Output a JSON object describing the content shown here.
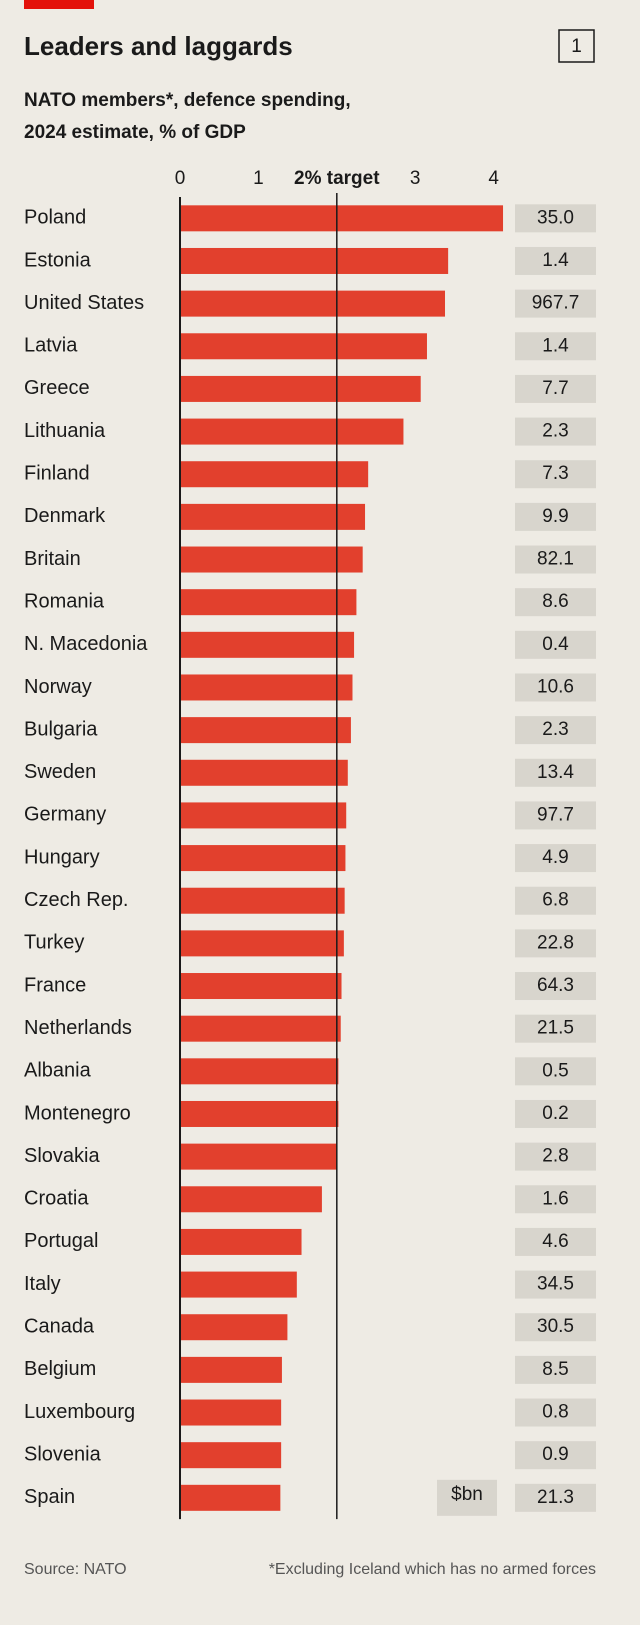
{
  "chart_data": {
    "type": "bar",
    "orientation": "horizontal",
    "title": "Leaders and laggards",
    "chart_number": "1",
    "subtitle": [
      "NATO members*, defence spending,",
      "2024 estimate, % of GDP"
    ],
    "categories": [
      "Poland",
      "Estonia",
      "United States",
      "Latvia",
      "Greece",
      "Lithuania",
      "Finland",
      "Denmark",
      "Britain",
      "Romania",
      "N. Macedonia",
      "Norway",
      "Bulgaria",
      "Sweden",
      "Germany",
      "Hungary",
      "Czech Rep.",
      "Turkey",
      "France",
      "Netherlands",
      "Albania",
      "Montenegro",
      "Slovakia",
      "Croatia",
      "Portugal",
      "Italy",
      "Canada",
      "Belgium",
      "Luxembourg",
      "Slovenia",
      "Spain"
    ],
    "values": [
      4.12,
      3.42,
      3.38,
      3.15,
      3.07,
      2.85,
      2.4,
      2.36,
      2.33,
      2.25,
      2.22,
      2.2,
      2.18,
      2.14,
      2.12,
      2.11,
      2.1,
      2.09,
      2.06,
      2.05,
      2.02,
      2.02,
      2.0,
      1.81,
      1.55,
      1.49,
      1.37,
      1.3,
      1.29,
      1.29,
      1.28
    ],
    "color": "#e2402d",
    "xlim": [
      0,
      4.2
    ],
    "xticks": [
      0,
      1,
      {
        "value": 2,
        "label": "2% target"
      },
      3,
      4
    ],
    "spending_label": "$bn",
    "spending": [
      35.0,
      1.4,
      967.7,
      1.4,
      7.7,
      2.3,
      7.3,
      9.9,
      82.1,
      8.6,
      0.4,
      10.6,
      2.3,
      13.4,
      97.7,
      4.9,
      6.8,
      22.8,
      64.3,
      21.5,
      0.5,
      0.2,
      2.8,
      1.6,
      4.6,
      34.5,
      30.5,
      8.5,
      0.8,
      0.9,
      21.3
    ],
    "spending_value_labels": [
      "35.0",
      "1.4",
      "967.7",
      "1.4",
      "7.7",
      "2.3",
      "7.3",
      "9.9",
      "82.1",
      "8.6",
      "0.4",
      "10.6",
      "2.3",
      "13.4",
      "97.7",
      "4.9",
      "6.8",
      "22.8",
      "64.3",
      "21.5",
      "0.5",
      "0.2",
      "2.8",
      "1.6",
      "4.6",
      "34.5",
      "30.5",
      "8.5",
      "0.8",
      "0.9",
      "21.3"
    ],
    "source": "Source: NATO",
    "footnote": "*Excluding Iceland which has no armed forces"
  }
}
